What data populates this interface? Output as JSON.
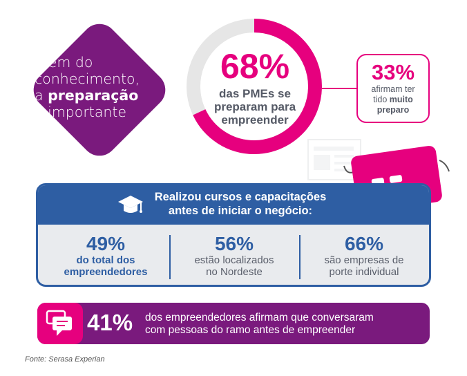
{
  "intro": {
    "line1": "Além do",
    "line2": "conhecimento,",
    "line3_pre": "a ",
    "line3_bold": "preparação",
    "line4": "é importante"
  },
  "donut": {
    "percent": "68%",
    "value": 68,
    "desc_line1": "das PMEs se",
    "desc_line2": "preparam para",
    "desc_line3": "empreender"
  },
  "callout": {
    "percent": "33%",
    "line1": "afirmam ter",
    "line2_pre": "tido ",
    "line2_bold": "muito",
    "line3_bold": "preparo"
  },
  "panel": {
    "title_line1": "Realizou cursos e capacitações",
    "title_line2": "antes de iniciar o negócio:",
    "stats": [
      {
        "num": "49%",
        "line1": "do total dos",
        "line2": "empreendedores"
      },
      {
        "num": "56%",
        "line1": "estão localizados",
        "line2": "no Nordeste"
      },
      {
        "num": "66%",
        "line1": "são empresas de",
        "line2": "porte individual"
      }
    ]
  },
  "bottom": {
    "percent": "41%",
    "line1": "dos empreendedores afirmam que conversaram",
    "line2": "com pessoas do ramo antes de empreender"
  },
  "source": "Fonte: Serasa Experian",
  "colors": {
    "purple": "#7a1a7d",
    "magenta": "#e6007e",
    "blue": "#2e5ea3",
    "donut_track": "#e6e6e6"
  },
  "icons": [
    "graduation-cap-icon",
    "chat-bubbles-icon",
    "mascot-card"
  ]
}
